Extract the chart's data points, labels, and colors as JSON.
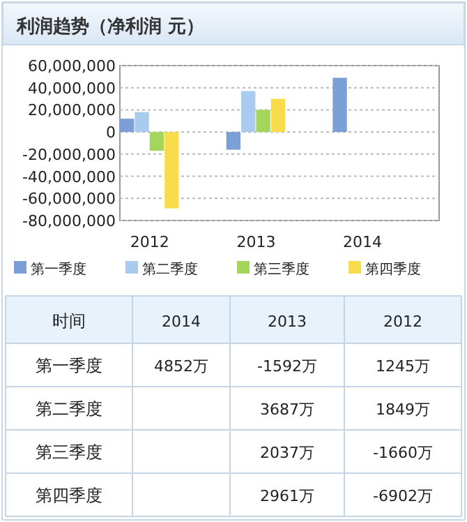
{
  "chart_data": [
    {
      "type": "bar",
      "title": "利润趋势（净利润 元）",
      "categories": [
        "2012",
        "2013",
        "2014"
      ],
      "series": [
        {
          "name": "第一季度",
          "color": "#7b9fd6",
          "values": [
            12000000,
            -16000000,
            49000000
          ]
        },
        {
          "name": "第二季度",
          "color": "#a9cbee",
          "values": [
            18000000,
            37000000,
            null
          ]
        },
        {
          "name": "第三季度",
          "color": "#a3d65a",
          "values": [
            -17000000,
            20000000,
            null
          ]
        },
        {
          "name": "第四季度",
          "color": "#f8dc4c",
          "values": [
            -69000000,
            30000000,
            null
          ]
        }
      ],
      "ylim": [
        -80000000,
        60000000
      ],
      "yticks": [
        {
          "value": -80000000,
          "label": "-80,000,000"
        },
        {
          "value": -60000000,
          "label": "-60,000,000"
        },
        {
          "value": -40000000,
          "label": "-40,000,000"
        },
        {
          "value": -20000000,
          "label": "-20,000,000"
        },
        0,
        {
          "value": 20000000,
          "label": "20,000,000"
        },
        {
          "value": 40000000,
          "label": "40,000,000"
        },
        {
          "value": 60000000,
          "label": "60,000,000"
        }
      ],
      "grid": "y",
      "legend": "bottom"
    },
    {
      "type": "other",
      "annotations": [
        "时间"
      ],
      "categories": [
        "2014",
        "2013",
        "2012"
      ],
      "y_categories": [
        "第一季度",
        "第二季度",
        "第三季度",
        "第四季度"
      ],
      "cell_labels": [
        [
          "4852万",
          "-1592万",
          "1245万"
        ],
        [
          null,
          "3687万",
          "1849万"
        ],
        [
          null,
          "2037万",
          "-1660万"
        ],
        [
          null,
          "2961万",
          "-6902万"
        ]
      ]
    }
  ]
}
